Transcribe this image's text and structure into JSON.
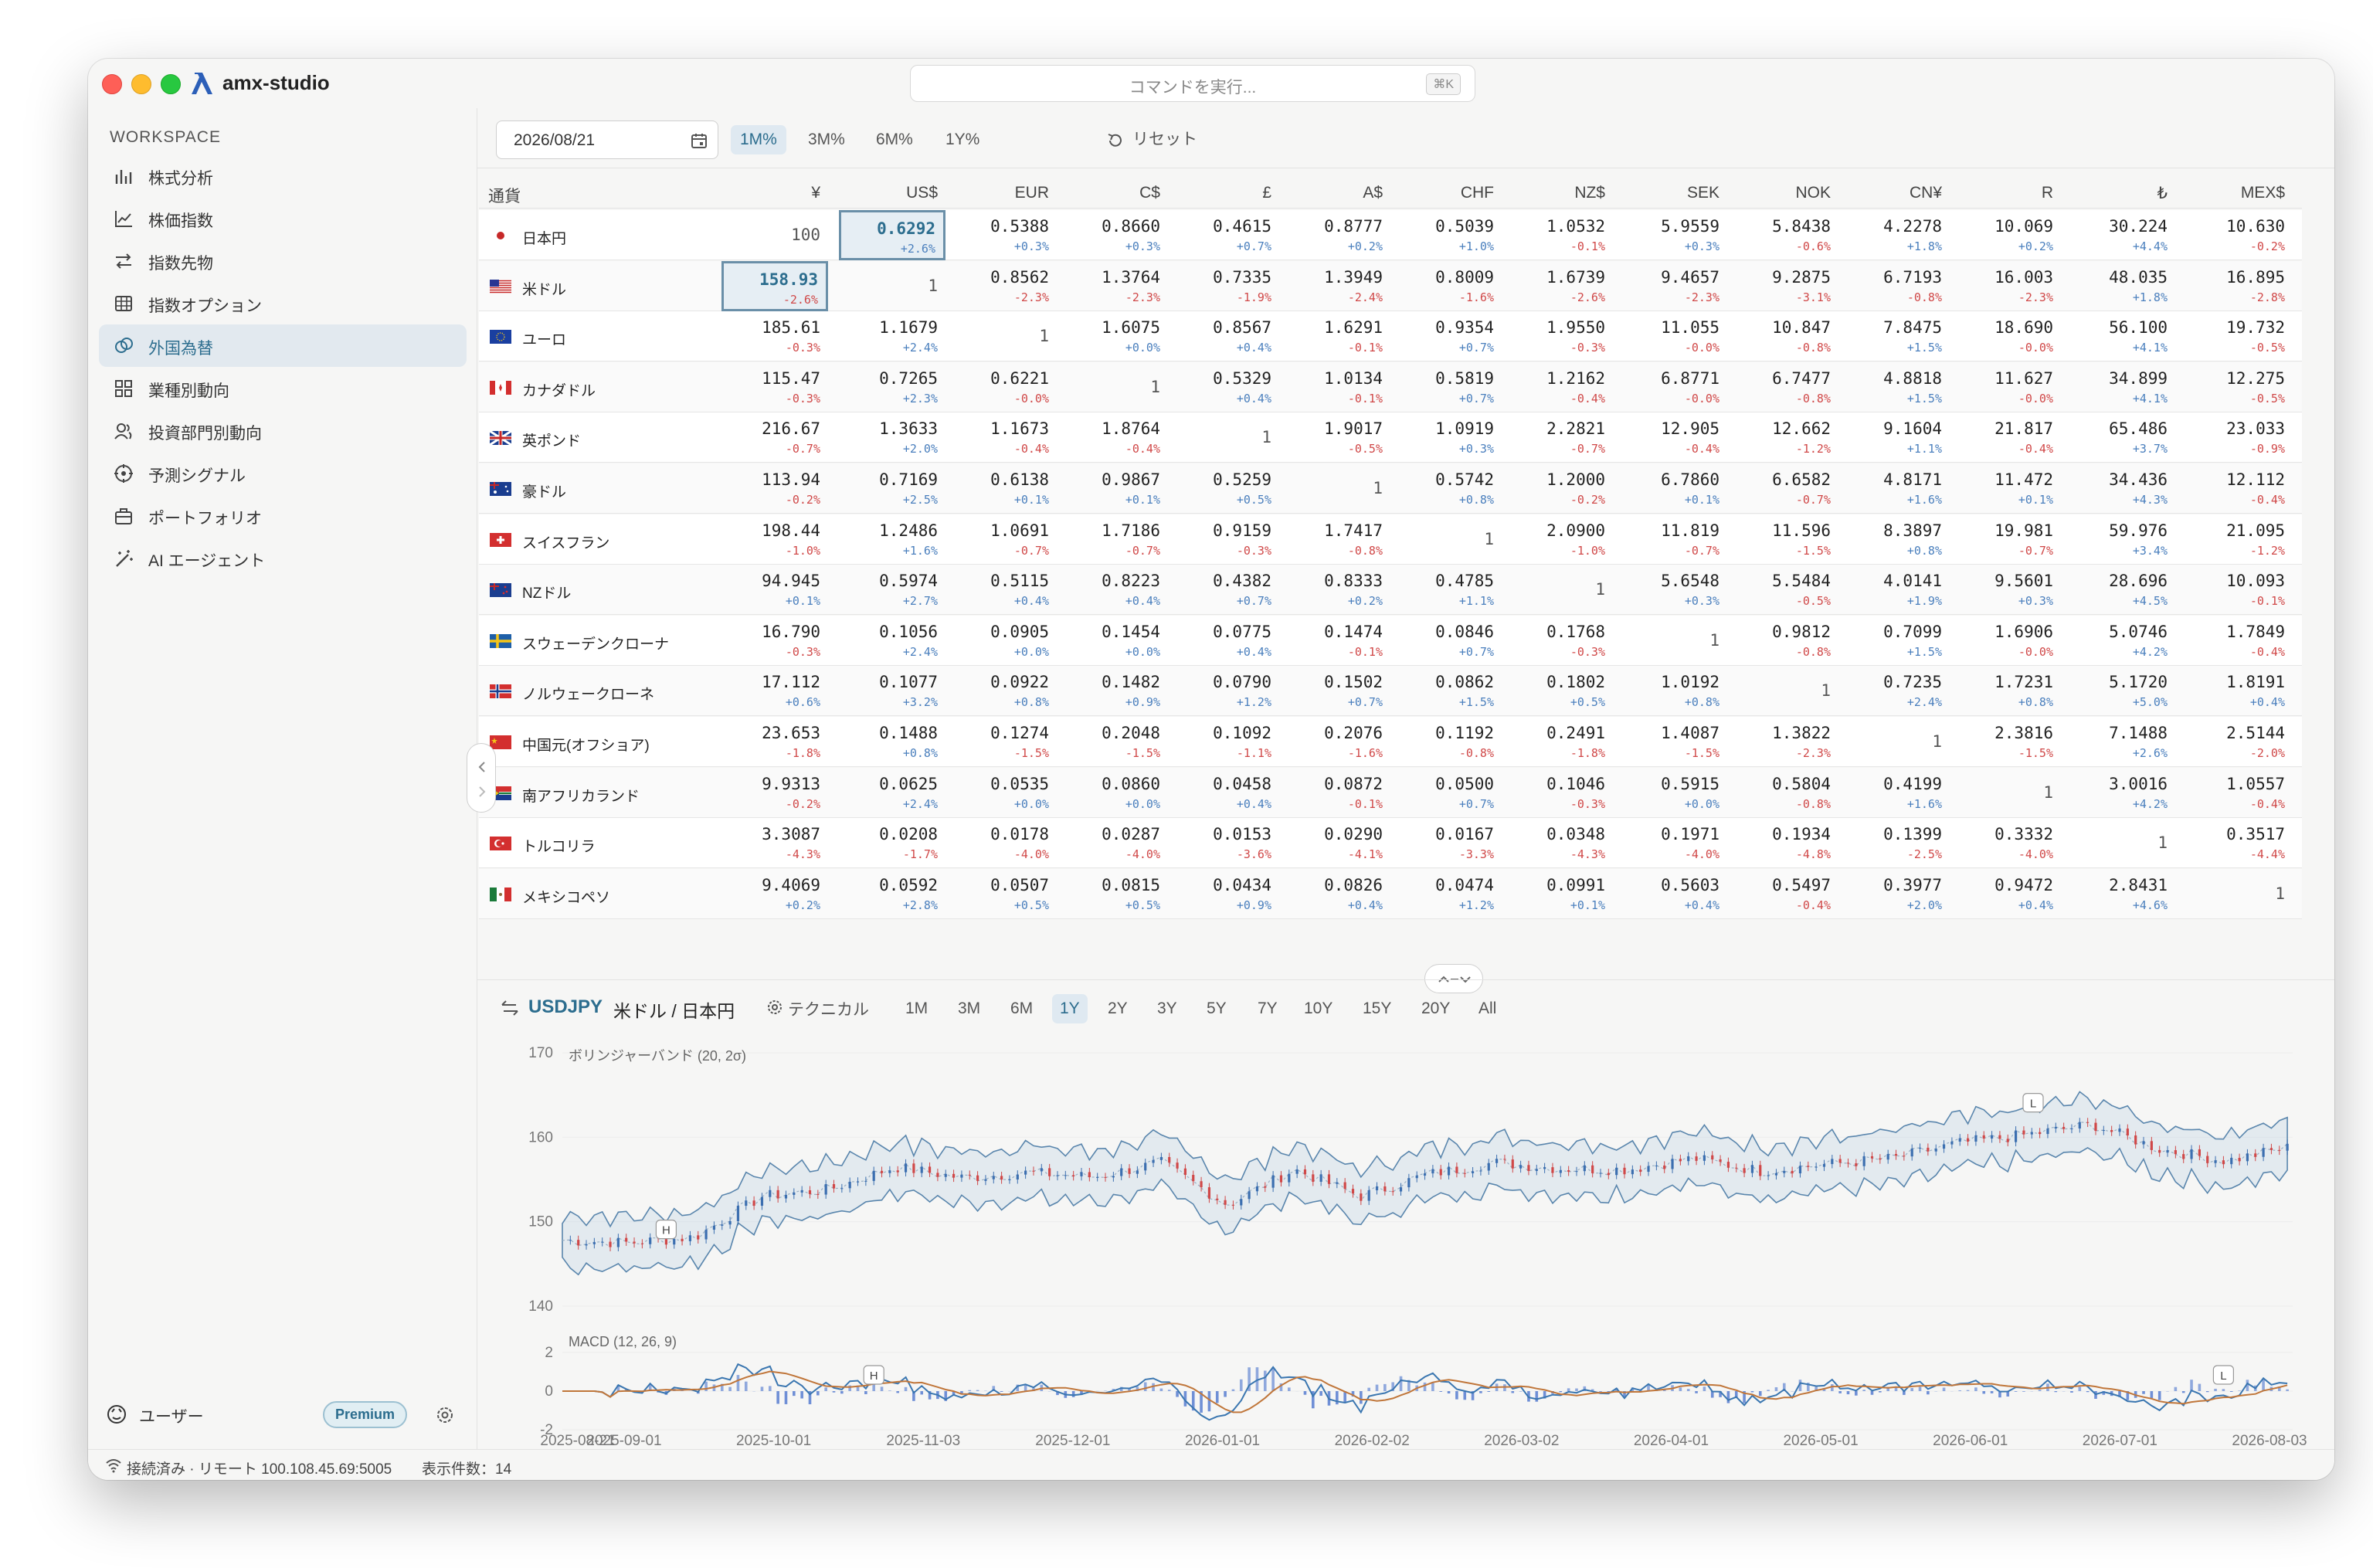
{
  "app": {
    "name": "amx-studio"
  },
  "command_bar": {
    "placeholder": "コマンドを実行...",
    "shortcut": "⌘K"
  },
  "sidebar": {
    "section_label": "WORKSPACE",
    "items": [
      {
        "label": "株式分析",
        "icon": "bar-chart-icon",
        "active": false
      },
      {
        "label": "株価指数",
        "icon": "line-chart-icon",
        "active": false
      },
      {
        "label": "指数先物",
        "icon": "swap-arrows-icon",
        "active": false
      },
      {
        "label": "指数オプション",
        "icon": "grid-table-icon",
        "active": false
      },
      {
        "label": "外国為替",
        "icon": "coins-icon",
        "active": true
      },
      {
        "label": "業種別動向",
        "icon": "four-squares-icon",
        "active": false
      },
      {
        "label": "投資部門別動向",
        "icon": "users-icon",
        "active": false
      },
      {
        "label": "予測シグナル",
        "icon": "target-icon",
        "active": false
      },
      {
        "label": "ポートフォリオ",
        "icon": "briefcase-icon",
        "active": false
      },
      {
        "label": "AI エージェント",
        "icon": "magic-wand-icon",
        "active": false
      }
    ],
    "user_label": "ユーザー",
    "plan_badge": "Premium"
  },
  "status": {
    "connection": "接続済み · リモート 100.108.45.69:5005",
    "count": "表示件数：14"
  },
  "toolbar": {
    "date": "2026/08/21",
    "ranges": [
      "1M%",
      "3M%",
      "6M%",
      "1Y%"
    ],
    "active_range": "1M%",
    "reset_label": "リセット"
  },
  "fx_table": {
    "header_first": "通貨",
    "columns": [
      "¥",
      "US$",
      "EUR",
      "C$",
      "£",
      "A$",
      "CHF",
      "NZ$",
      "SEK",
      "NOK",
      "CN¥",
      "R",
      "₺",
      "MEX$"
    ],
    "rows": [
      {
        "name": "日本円",
        "flag": "jp",
        "values": [
          "1",
          "0.6292",
          "0.5388",
          "0.8660",
          "0.4615",
          "0.8777",
          "0.5039",
          "1.0532",
          "5.9559",
          "5.8438",
          "4.2278",
          "10.069",
          "30.224",
          "10.630"
        ],
        "changes": [
          "",
          "+2.6%",
          "+0.3%",
          "+0.3%",
          "+0.7%",
          "+0.2%",
          "+1.0%",
          "-0.1%",
          "+0.3%",
          "-0.6%",
          "+1.8%",
          "+0.2%",
          "+4.4%",
          "-0.2%"
        ]
      },
      {
        "name": "米ドル",
        "flag": "us",
        "values": [
          "158.93",
          "1",
          "0.8562",
          "1.3764",
          "0.7335",
          "1.3949",
          "0.8009",
          "1.6739",
          "9.4657",
          "9.2875",
          "6.7193",
          "16.003",
          "48.035",
          "16.895"
        ],
        "changes": [
          "-2.6%",
          "",
          "-2.3%",
          "-2.3%",
          "-1.9%",
          "-2.4%",
          "-1.6%",
          "-2.6%",
          "-2.3%",
          "-3.1%",
          "-0.8%",
          "-2.3%",
          "+1.8%",
          "-2.8%"
        ]
      },
      {
        "name": "ユーロ",
        "flag": "eu",
        "values": [
          "185.61",
          "1.1679",
          "1",
          "1.6075",
          "0.8567",
          "1.6291",
          "0.9354",
          "1.9550",
          "11.055",
          "10.847",
          "7.8475",
          "18.690",
          "56.100",
          "19.732"
        ],
        "changes": [
          "-0.3%",
          "+2.4%",
          "",
          "+0.0%",
          "+0.4%",
          "-0.1%",
          "+0.7%",
          "-0.3%",
          "-0.0%",
          "-0.8%",
          "+1.5%",
          "-0.0%",
          "+4.1%",
          "-0.5%"
        ]
      },
      {
        "name": "カナダドル",
        "flag": "ca",
        "values": [
          "115.47",
          "0.7265",
          "0.6221",
          "1",
          "0.5329",
          "1.0134",
          "0.5819",
          "1.2162",
          "6.8771",
          "6.7477",
          "4.8818",
          "11.627",
          "34.899",
          "12.275"
        ],
        "changes": [
          "-0.3%",
          "+2.3%",
          "-0.0%",
          "",
          "+0.4%",
          "-0.1%",
          "+0.7%",
          "-0.4%",
          "-0.0%",
          "-0.8%",
          "+1.5%",
          "-0.0%",
          "+4.1%",
          "-0.5%"
        ]
      },
      {
        "name": "英ポンド",
        "flag": "gb",
        "values": [
          "216.67",
          "1.3633",
          "1.1673",
          "1.8764",
          "1",
          "1.9017",
          "1.0919",
          "2.2821",
          "12.905",
          "12.662",
          "9.1604",
          "21.817",
          "65.486",
          "23.033"
        ],
        "changes": [
          "-0.7%",
          "+2.0%",
          "-0.4%",
          "-0.4%",
          "",
          "-0.5%",
          "+0.3%",
          "-0.7%",
          "-0.4%",
          "-1.2%",
          "+1.1%",
          "-0.4%",
          "+3.7%",
          "-0.9%"
        ]
      },
      {
        "name": "豪ドル",
        "flag": "au",
        "values": [
          "113.94",
          "0.7169",
          "0.6138",
          "0.9867",
          "0.5259",
          "1",
          "0.5742",
          "1.2000",
          "6.7860",
          "6.6582",
          "4.8171",
          "11.472",
          "34.436",
          "12.112"
        ],
        "changes": [
          "-0.2%",
          "+2.5%",
          "+0.1%",
          "+0.1%",
          "+0.5%",
          "",
          "+0.8%",
          "-0.2%",
          "+0.1%",
          "-0.7%",
          "+1.6%",
          "+0.1%",
          "+4.3%",
          "-0.4%"
        ]
      },
      {
        "name": "スイスフラン",
        "flag": "ch",
        "values": [
          "198.44",
          "1.2486",
          "1.0691",
          "1.7186",
          "0.9159",
          "1.7417",
          "1",
          "2.0900",
          "11.819",
          "11.596",
          "8.3897",
          "19.981",
          "59.976",
          "21.095"
        ],
        "changes": [
          "-1.0%",
          "+1.6%",
          "-0.7%",
          "-0.7%",
          "-0.3%",
          "-0.8%",
          "",
          "-1.0%",
          "-0.7%",
          "-1.5%",
          "+0.8%",
          "-0.7%",
          "+3.4%",
          "-1.2%"
        ]
      },
      {
        "name": "NZドル",
        "flag": "nz",
        "values": [
          "94.945",
          "0.5974",
          "0.5115",
          "0.8223",
          "0.4382",
          "0.8333",
          "0.4785",
          "1",
          "5.6548",
          "5.5484",
          "4.0141",
          "9.5601",
          "28.696",
          "10.093"
        ],
        "changes": [
          "+0.1%",
          "+2.7%",
          "+0.4%",
          "+0.4%",
          "+0.7%",
          "+0.2%",
          "+1.1%",
          "",
          "+0.3%",
          "-0.5%",
          "+1.9%",
          "+0.3%",
          "+4.5%",
          "-0.1%"
        ]
      },
      {
        "name": "スウェーデンクローナ",
        "flag": "se",
        "values": [
          "16.790",
          "0.1056",
          "0.0905",
          "0.1454",
          "0.0775",
          "0.1474",
          "0.0846",
          "0.1768",
          "1",
          "0.9812",
          "0.7099",
          "1.6906",
          "5.0746",
          "1.7849"
        ],
        "changes": [
          "-0.3%",
          "+2.4%",
          "+0.0%",
          "+0.0%",
          "+0.4%",
          "-0.1%",
          "+0.7%",
          "-0.3%",
          "",
          "-0.8%",
          "+1.5%",
          "-0.0%",
          "+4.2%",
          "-0.4%"
        ]
      },
      {
        "name": "ノルウェークローネ",
        "flag": "no",
        "values": [
          "17.112",
          "0.1077",
          "0.0922",
          "0.1482",
          "0.0790",
          "0.1502",
          "0.0862",
          "0.1802",
          "1.0192",
          "1",
          "0.7235",
          "1.7231",
          "5.1720",
          "1.8191"
        ],
        "changes": [
          "+0.6%",
          "+3.2%",
          "+0.8%",
          "+0.9%",
          "+1.2%",
          "+0.7%",
          "+1.5%",
          "+0.5%",
          "+0.8%",
          "",
          "+2.4%",
          "+0.8%",
          "+5.0%",
          "+0.4%"
        ]
      },
      {
        "name": "中国元(オフショア)",
        "flag": "cn",
        "values": [
          "23.653",
          "0.1488",
          "0.1274",
          "0.2048",
          "0.1092",
          "0.2076",
          "0.1192",
          "0.2491",
          "1.4087",
          "1.3822",
          "1",
          "2.3816",
          "7.1488",
          "2.5144"
        ],
        "changes": [
          "-1.8%",
          "+0.8%",
          "-1.5%",
          "-1.5%",
          "-1.1%",
          "-1.6%",
          "-0.8%",
          "-1.8%",
          "-1.5%",
          "-2.3%",
          "",
          "-1.5%",
          "+2.6%",
          "-2.0%"
        ]
      },
      {
        "name": "南アフリカランド",
        "flag": "za",
        "values": [
          "9.9313",
          "0.0625",
          "0.0535",
          "0.0860",
          "0.0458",
          "0.0872",
          "0.0500",
          "0.1046",
          "0.5915",
          "0.5804",
          "0.4199",
          "1",
          "3.0016",
          "1.0557"
        ],
        "changes": [
          "-0.2%",
          "+2.4%",
          "+0.0%",
          "+0.0%",
          "+0.4%",
          "-0.1%",
          "+0.7%",
          "-0.3%",
          "+0.0%",
          "-0.8%",
          "+1.6%",
          "",
          "+4.2%",
          "-0.4%"
        ]
      },
      {
        "name": "トルコリラ",
        "flag": "tr",
        "values": [
          "3.3087",
          "0.0208",
          "0.0178",
          "0.0287",
          "0.0153",
          "0.0290",
          "0.0167",
          "0.0348",
          "0.1971",
          "0.1934",
          "0.1399",
          "0.3332",
          "1",
          "0.3517"
        ],
        "changes": [
          "-4.3%",
          "-1.7%",
          "-4.0%",
          "-4.0%",
          "-3.6%",
          "-4.1%",
          "-3.3%",
          "-4.3%",
          "-4.0%",
          "-4.8%",
          "-2.5%",
          "-4.0%",
          "",
          "-4.4%"
        ]
      },
      {
        "name": "メキシコペソ",
        "flag": "mx",
        "values": [
          "9.4069",
          "0.0592",
          "0.0507",
          "0.0815",
          "0.0434",
          "0.0826",
          "0.0474",
          "0.0991",
          "0.5603",
          "0.5497",
          "0.3977",
          "0.9472",
          "2.8431",
          "1"
        ],
        "changes": [
          "+0.2%",
          "+2.8%",
          "+0.5%",
          "+0.5%",
          "+0.9%",
          "+0.4%",
          "+1.2%",
          "+0.1%",
          "+0.4%",
          "-0.4%",
          "+2.0%",
          "+0.4%",
          "+4.6%",
          ""
        ]
      }
    ],
    "selected_cells": [
      [
        0,
        1
      ],
      [
        1,
        0
      ]
    ],
    "jpy_base_display": "100"
  },
  "chart_panel": {
    "pair_code": "USDJPY",
    "pair_name": "米ドル / 日本円",
    "tech_label": "テクニカル",
    "timeframes": [
      "1M",
      "3M",
      "6M",
      "1Y",
      "2Y",
      "3Y",
      "5Y",
      "7Y",
      "10Y",
      "15Y",
      "20Y",
      "All"
    ],
    "active_timeframe": "1Y"
  },
  "chart_data": {
    "type": "line",
    "price_label": "ボリンジャーバンド (20, 2σ)",
    "macd_label": "MACD (12, 26, 9)",
    "ylim": [
      140,
      170
    ],
    "yticks": [
      "170",
      "160",
      "150",
      "140"
    ],
    "macd_ylim": [
      -2,
      2
    ],
    "macd_yticks": [
      "2",
      "0",
      "-2"
    ],
    "xticks": [
      "2025-08-21",
      "2025-09-01",
      "2025-10-01",
      "2025-11-03",
      "2025-12-01",
      "2026-01-01",
      "2026-02-02",
      "2026-03-02",
      "2026-04-01",
      "2026-05-01",
      "2026-06-01",
      "2026-07-01",
      "2026-08-03"
    ],
    "series": [
      {
        "name": "",
        "x": [
          "2025-08-21",
          "2025-09-01",
          "2025-09-15",
          "2025-10-01",
          "2025-10-15",
          "2025-11-03",
          "2025-11-17",
          "2025-12-01",
          "2025-12-15",
          "2026-01-01",
          "2026-01-09",
          "2026-01-20",
          "2026-02-02",
          "2026-02-16",
          "2026-03-02",
          "2026-03-16",
          "2026-04-01",
          "2026-04-15",
          "2026-05-01",
          "2026-05-15",
          "2026-06-01",
          "2026-06-15",
          "2026-07-01",
          "2026-07-10",
          "2026-07-20",
          "2026-08-03",
          "2026-08-21"
        ],
        "values": [
          147.8,
          147.5,
          148.2,
          153.0,
          153.8,
          156.5,
          155.2,
          155.8,
          155.3,
          157.0,
          152.0,
          156.2,
          153.0,
          155.6,
          157.0,
          156.3,
          156.2,
          157.5,
          156.0,
          156.8,
          157.5,
          159.3,
          160.3,
          161.5,
          158.6,
          157.2,
          158.9
        ]
      }
    ],
    "markers": [
      "H",
      "L",
      "H",
      "L"
    ]
  }
}
